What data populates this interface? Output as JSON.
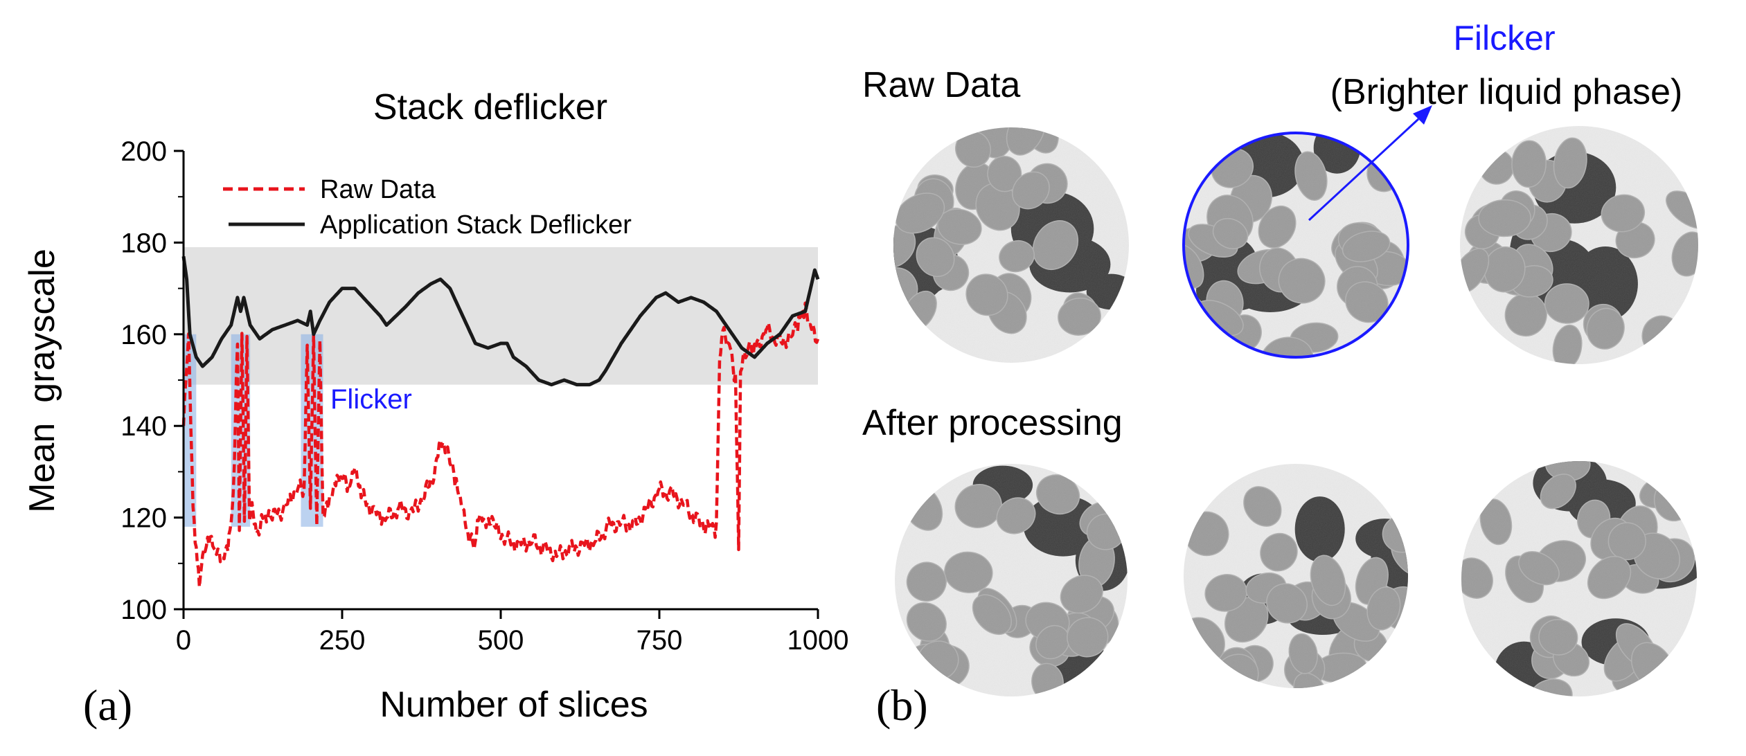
{
  "panel_a": {
    "label": "(a)",
    "annotation": "Flicker"
  },
  "panel_b": {
    "label": "(b)",
    "row1_label": "Raw Data",
    "row2_label": "After processing",
    "flicker_title": "Filcker",
    "flicker_subtitle": "(Brighter liquid phase)",
    "colors": {
      "annotation": "#1a1aff",
      "image_dark": "#3c3c3c",
      "image_mid": "#9a9a9a",
      "image_light": "#ececec"
    }
  },
  "chart_data": {
    "type": "line",
    "title": "Stack deflicker",
    "xlabel": "Number of slices",
    "ylabel": "Mean  grayscale",
    "xlim": [
      0,
      1000
    ],
    "ylim": [
      100,
      200
    ],
    "x_ticks": [
      "0",
      "250",
      "500",
      "750",
      "1000"
    ],
    "y_ticks": [
      "100",
      "120",
      "140",
      "160",
      "180",
      "200"
    ],
    "band": [
      149,
      179
    ],
    "legend_position": "top-left",
    "series": [
      {
        "name": "Raw Data",
        "color": "#e8141c",
        "style": "dashed",
        "points": [
          [
            0,
            140
          ],
          [
            8,
            160
          ],
          [
            15,
            122
          ],
          [
            20,
            113
          ],
          [
            25,
            106
          ],
          [
            30,
            111
          ],
          [
            40,
            115
          ],
          [
            50,
            113
          ],
          [
            60,
            110
          ],
          [
            70,
            113
          ],
          [
            75,
            118
          ],
          [
            80,
            132
          ],
          [
            85,
            158
          ],
          [
            88,
            119
          ],
          [
            92,
            160
          ],
          [
            96,
            120
          ],
          [
            100,
            159
          ],
          [
            104,
            118
          ],
          [
            108,
            123
          ],
          [
            115,
            116
          ],
          [
            125,
            121
          ],
          [
            140,
            120
          ],
          [
            160,
            122
          ],
          [
            180,
            127
          ],
          [
            190,
            125
          ],
          [
            195,
            159
          ],
          [
            200,
            121
          ],
          [
            205,
            160
          ],
          [
            210,
            119
          ],
          [
            215,
            158
          ],
          [
            220,
            120
          ],
          [
            230,
            123
          ],
          [
            240,
            127
          ],
          [
            250,
            129
          ],
          [
            260,
            126
          ],
          [
            270,
            130
          ],
          [
            280,
            125
          ],
          [
            300,
            121
          ],
          [
            320,
            120
          ],
          [
            340,
            122
          ],
          [
            360,
            121
          ],
          [
            380,
            125
          ],
          [
            395,
            130
          ],
          [
            405,
            138
          ],
          [
            420,
            132
          ],
          [
            430,
            127
          ],
          [
            440,
            121
          ],
          [
            450,
            115
          ],
          [
            460,
            114
          ],
          [
            465,
            121
          ],
          [
            475,
            120
          ],
          [
            490,
            118
          ],
          [
            510,
            115
          ],
          [
            530,
            114
          ],
          [
            550,
            115
          ],
          [
            570,
            113
          ],
          [
            590,
            112
          ],
          [
            610,
            113
          ],
          [
            630,
            114
          ],
          [
            650,
            115
          ],
          [
            670,
            118
          ],
          [
            690,
            119
          ],
          [
            710,
            118
          ],
          [
            730,
            122
          ],
          [
            750,
            126
          ],
          [
            770,
            125
          ],
          [
            790,
            123
          ],
          [
            810,
            119
          ],
          [
            830,
            118
          ],
          [
            840,
            117
          ],
          [
            845,
            156
          ],
          [
            850,
            160
          ],
          [
            860,
            158
          ],
          [
            870,
            150
          ],
          [
            875,
            115
          ],
          [
            878,
            152
          ],
          [
            890,
            157
          ],
          [
            900,
            157
          ],
          [
            920,
            161
          ],
          [
            940,
            158
          ],
          [
            960,
            160
          ],
          [
            970,
            163
          ],
          [
            980,
            165
          ],
          [
            990,
            161
          ],
          [
            1000,
            159
          ]
        ]
      },
      {
        "name": "Application Stack Deflicker",
        "color": "#1a1a1a",
        "style": "solid",
        "points": [
          [
            0,
            177
          ],
          [
            5,
            172
          ],
          [
            10,
            160
          ],
          [
            20,
            155
          ],
          [
            30,
            153
          ],
          [
            45,
            155
          ],
          [
            60,
            159
          ],
          [
            75,
            162
          ],
          [
            85,
            168
          ],
          [
            90,
            165
          ],
          [
            95,
            168
          ],
          [
            105,
            162
          ],
          [
            120,
            159
          ],
          [
            140,
            161
          ],
          [
            160,
            162
          ],
          [
            180,
            163
          ],
          [
            195,
            162
          ],
          [
            200,
            165
          ],
          [
            205,
            160
          ],
          [
            215,
            163
          ],
          [
            230,
            167
          ],
          [
            250,
            170
          ],
          [
            270,
            170
          ],
          [
            290,
            167
          ],
          [
            310,
            164
          ],
          [
            320,
            162
          ],
          [
            335,
            164
          ],
          [
            350,
            166
          ],
          [
            370,
            169
          ],
          [
            390,
            171
          ],
          [
            405,
            172
          ],
          [
            420,
            170
          ],
          [
            440,
            164
          ],
          [
            460,
            158
          ],
          [
            480,
            157
          ],
          [
            500,
            158
          ],
          [
            510,
            158
          ],
          [
            520,
            155
          ],
          [
            540,
            153
          ],
          [
            560,
            150
          ],
          [
            580,
            149
          ],
          [
            600,
            150
          ],
          [
            620,
            149
          ],
          [
            640,
            149
          ],
          [
            655,
            150
          ],
          [
            665,
            152
          ],
          [
            690,
            158
          ],
          [
            720,
            164
          ],
          [
            745,
            168
          ],
          [
            760,
            169
          ],
          [
            780,
            167
          ],
          [
            800,
            168
          ],
          [
            820,
            167
          ],
          [
            840,
            165
          ],
          [
            860,
            161
          ],
          [
            880,
            157
          ],
          [
            900,
            155
          ],
          [
            920,
            158
          ],
          [
            940,
            160
          ],
          [
            960,
            164
          ],
          [
            980,
            165
          ],
          [
            995,
            174
          ],
          [
            1000,
            172
          ]
        ]
      }
    ],
    "highlighted_regions": [
      [
        0,
        20,
        118,
        160
      ],
      [
        75,
        105,
        118,
        160
      ],
      [
        185,
        220,
        118,
        160
      ]
    ]
  }
}
